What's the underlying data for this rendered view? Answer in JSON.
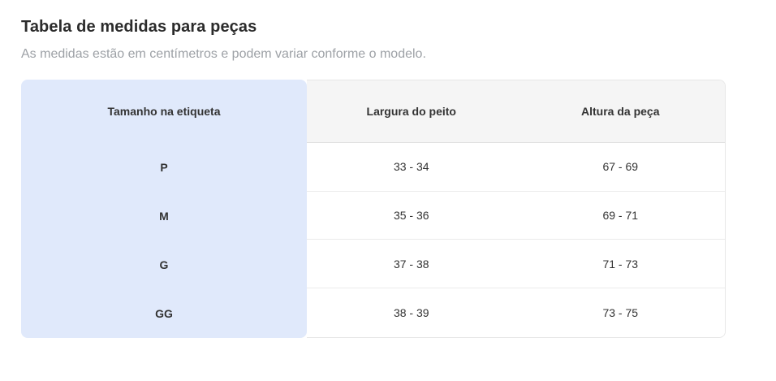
{
  "page": {
    "title": "Tabela de medidas para peças",
    "subtitle": "As medidas estão em centímetros e podem variar conforme o modelo."
  },
  "table": {
    "size_column_header": "Tamanho na etiqueta",
    "measure_headers": [
      "Largura do peito",
      "Altura da peça"
    ],
    "rows": [
      {
        "size": "P",
        "chest": "33 - 34",
        "height": "67 - 69"
      },
      {
        "size": "M",
        "chest": "35 - 36",
        "height": "69 - 71"
      },
      {
        "size": "G",
        "chest": "37 - 38",
        "height": "71 - 73"
      },
      {
        "size": "GG",
        "chest": "38 - 39",
        "height": "73 - 75"
      }
    ]
  },
  "colors": {
    "size_column_bg": "#e0e9fb",
    "header_bg": "#f5f5f5",
    "border": "#e7e7e7",
    "title_text": "#2b2b2b",
    "subtitle_text": "#9da1a6",
    "cell_text": "#333333"
  }
}
